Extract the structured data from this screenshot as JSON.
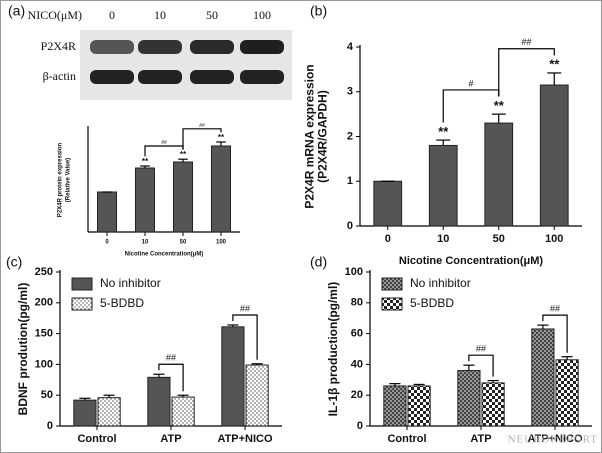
{
  "chart_data": [
    {
      "type": "bar",
      "label": "(a)",
      "blot": {
        "header": "NICO(μM)",
        "lanes": [
          "0",
          "10",
          "50",
          "100"
        ],
        "rows": [
          "P2X4R",
          "β-actin"
        ]
      },
      "ylabel": [
        "P2X4R protein expression",
        "(Relative Value)"
      ],
      "xlabel": "Nicotine  Concentration(μM)",
      "categories": [
        "0",
        "10",
        "50",
        "100"
      ],
      "series": [
        {
          "color": "#555555",
          "values": [
            1.0,
            1.6,
            1.75,
            2.15
          ],
          "errors": [
            0,
            0.05,
            0.07,
            0.1
          ]
        }
      ],
      "stars": [
        null,
        "**",
        "**",
        "**"
      ],
      "brackets": [
        null,
        null,
        "##",
        "##"
      ],
      "ylim": [
        0,
        2.6
      ]
    },
    {
      "type": "bar",
      "label": "(b)",
      "ylabel": [
        "P2X4R mRNA expression",
        "(P2X4R/GAPDH)"
      ],
      "xlabel": "Nicotine  Concentration(μM)",
      "categories": [
        "0",
        "10",
        "50",
        "100"
      ],
      "series": [
        {
          "color": "#555555",
          "values": [
            1.0,
            1.8,
            2.3,
            3.15
          ],
          "errors": [
            0,
            0.12,
            0.2,
            0.27
          ]
        }
      ],
      "stars": [
        null,
        "**",
        "**",
        "**"
      ],
      "brackets": [
        null,
        null,
        "#",
        "##"
      ],
      "ylim": [
        0,
        4
      ],
      "yticks": [
        0,
        1,
        2,
        3,
        4
      ]
    },
    {
      "type": "grouped-bar",
      "label": "(c)",
      "ylabel": [
        "BDNF prodution(pg/ml)"
      ],
      "categories": [
        "Control",
        "ATP",
        "ATP+NICO"
      ],
      "series": [
        {
          "name": "No inhibitor",
          "color": "#555555",
          "pattern": "solid",
          "values": [
            42,
            79,
            161
          ],
          "errors": [
            3,
            5,
            3
          ]
        },
        {
          "name": "5-BDBD",
          "color": "#ffffff",
          "pattern": "dots",
          "values": [
            46,
            47,
            99
          ],
          "errors": [
            4,
            3,
            2
          ]
        }
      ],
      "brackets": [
        null,
        "##",
        "##"
      ],
      "ylim": [
        0,
        250
      ],
      "yticks": [
        0,
        50,
        100,
        150,
        200,
        250
      ],
      "legend": "upper-left"
    },
    {
      "type": "grouped-bar",
      "label": "(d)",
      "ylabel": [
        "IL-1β production(pg/ml)"
      ],
      "categories": [
        "Control",
        "ATP",
        "ATP+NICO"
      ],
      "series": [
        {
          "name": "No inhibitor",
          "color": "#777777",
          "pattern": "checker-fine",
          "values": [
            26,
            36,
            63
          ],
          "errors": [
            1.5,
            3.5,
            2.5
          ]
        },
        {
          "name": "5-BDBD",
          "color": "#ffffff",
          "pattern": "checker",
          "values": [
            26,
            28,
            43
          ],
          "errors": [
            1,
            1.5,
            2
          ]
        }
      ],
      "brackets": [
        null,
        "##",
        "##"
      ],
      "ylim": [
        0,
        100
      ],
      "yticks": [
        0,
        20,
        40,
        60,
        80,
        100
      ],
      "legend": "upper-left"
    }
  ],
  "watermark": "NEUROREPORT"
}
